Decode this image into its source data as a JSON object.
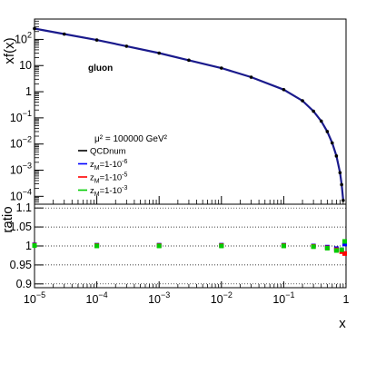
{
  "chart_data": [
    {
      "type": "line",
      "panel": "top",
      "ylabel": "xf(x)",
      "yscale": "log",
      "xscale": "log",
      "xlim": [
        1e-05,
        1
      ],
      "ylim": [
        5e-05,
        600
      ],
      "annotation": "gluon",
      "scale_label": "μ² = 100000 GeV²",
      "yticks": [
        {
          "value": 100,
          "label": "10",
          "exp": "2"
        },
        {
          "value": 10,
          "label": "10",
          "exp": ""
        },
        {
          "value": 1,
          "label": "1",
          "exp": ""
        },
        {
          "value": 0.1,
          "label": "10",
          "exp": "−1"
        },
        {
          "value": 0.01,
          "label": "10",
          "exp": "−2"
        },
        {
          "value": 0.001,
          "label": "10",
          "exp": "−3"
        },
        {
          "value": 0.0001,
          "label": "10",
          "exp": "−4"
        }
      ],
      "legend": [
        {
          "label": "QCDnum",
          "color": "#000000"
        },
        {
          "label": "z",
          "sub": "M",
          "tail": "=1-10",
          "exp": "-6",
          "color": "#0000ff"
        },
        {
          "label": "z",
          "sub": "M",
          "tail": "=1-10",
          "exp": "-5",
          "color": "#ff0000"
        },
        {
          "label": "z",
          "sub": "M",
          "tail": "=1-10",
          "exp": "-3",
          "color": "#00cc00"
        }
      ],
      "series": [
        {
          "name": "QCDnum",
          "color": "#000000",
          "x": [
            1e-05,
            3e-05,
            0.0001,
            0.0003,
            0.001,
            0.003,
            0.01,
            0.03,
            0.1,
            0.2,
            0.3,
            0.4,
            0.5,
            0.6,
            0.7,
            0.8,
            0.85,
            0.9
          ],
          "y": [
            260,
            160,
            95,
            55,
            30,
            16,
            8,
            3.6,
            1.2,
            0.45,
            0.18,
            0.075,
            0.03,
            0.011,
            0.0035,
            0.0008,
            0.00028,
            7e-05
          ]
        }
      ]
    },
    {
      "type": "scatter",
      "panel": "bottom",
      "ylabel": "ratio",
      "xlabel": "x",
      "xscale": "log",
      "xlim": [
        1e-05,
        1
      ],
      "ylim": [
        0.89,
        1.11
      ],
      "yticks": [
        {
          "value": 1.1,
          "label": "1.1"
        },
        {
          "value": 1.05,
          "label": "1.05"
        },
        {
          "value": 1.0,
          "label": "1"
        },
        {
          "value": 0.95,
          "label": "0.95"
        },
        {
          "value": 0.9,
          "label": "0.9"
        }
      ],
      "xticks": [
        {
          "value": 1e-05,
          "label": "10",
          "exp": "−5"
        },
        {
          "value": 0.0001,
          "label": "10",
          "exp": "−4"
        },
        {
          "value": 0.001,
          "label": "10",
          "exp": "−3"
        },
        {
          "value": 0.01,
          "label": "10",
          "exp": "−2"
        },
        {
          "value": 0.1,
          "label": "10",
          "exp": "−1"
        },
        {
          "value": 1,
          "label": "1",
          "exp": ""
        }
      ],
      "series": [
        {
          "name": "zM=1-10^-6",
          "color": "#0000ff",
          "x": [
            1e-05,
            0.0001,
            0.001,
            0.01,
            0.1,
            0.3,
            0.5,
            0.7,
            0.85,
            0.95
          ],
          "y": [
            1.003,
            1.002,
            1.002,
            1.002,
            1.002,
            1.0,
            0.997,
            0.993,
            0.99,
            1.005
          ]
        },
        {
          "name": "zM=1-10^-5",
          "color": "#ff0000",
          "x": [
            1e-05,
            0.0001,
            0.001,
            0.01,
            0.1,
            0.3,
            0.5,
            0.7,
            0.85,
            0.95
          ],
          "y": [
            1.002,
            1.001,
            1.001,
            1.001,
            1.001,
            0.999,
            0.995,
            0.99,
            0.985,
            0.98
          ]
        },
        {
          "name": "zM=1-10^-3",
          "color": "#00cc00",
          "x": [
            1e-05,
            0.0001,
            0.001,
            0.01,
            0.1,
            0.3,
            0.5,
            0.7,
            0.85,
            0.95
          ],
          "y": [
            1.001,
            1.0,
            1.0,
            1.0,
            1.0,
            0.998,
            0.994,
            0.988,
            0.99,
            1.012
          ]
        }
      ]
    }
  ]
}
